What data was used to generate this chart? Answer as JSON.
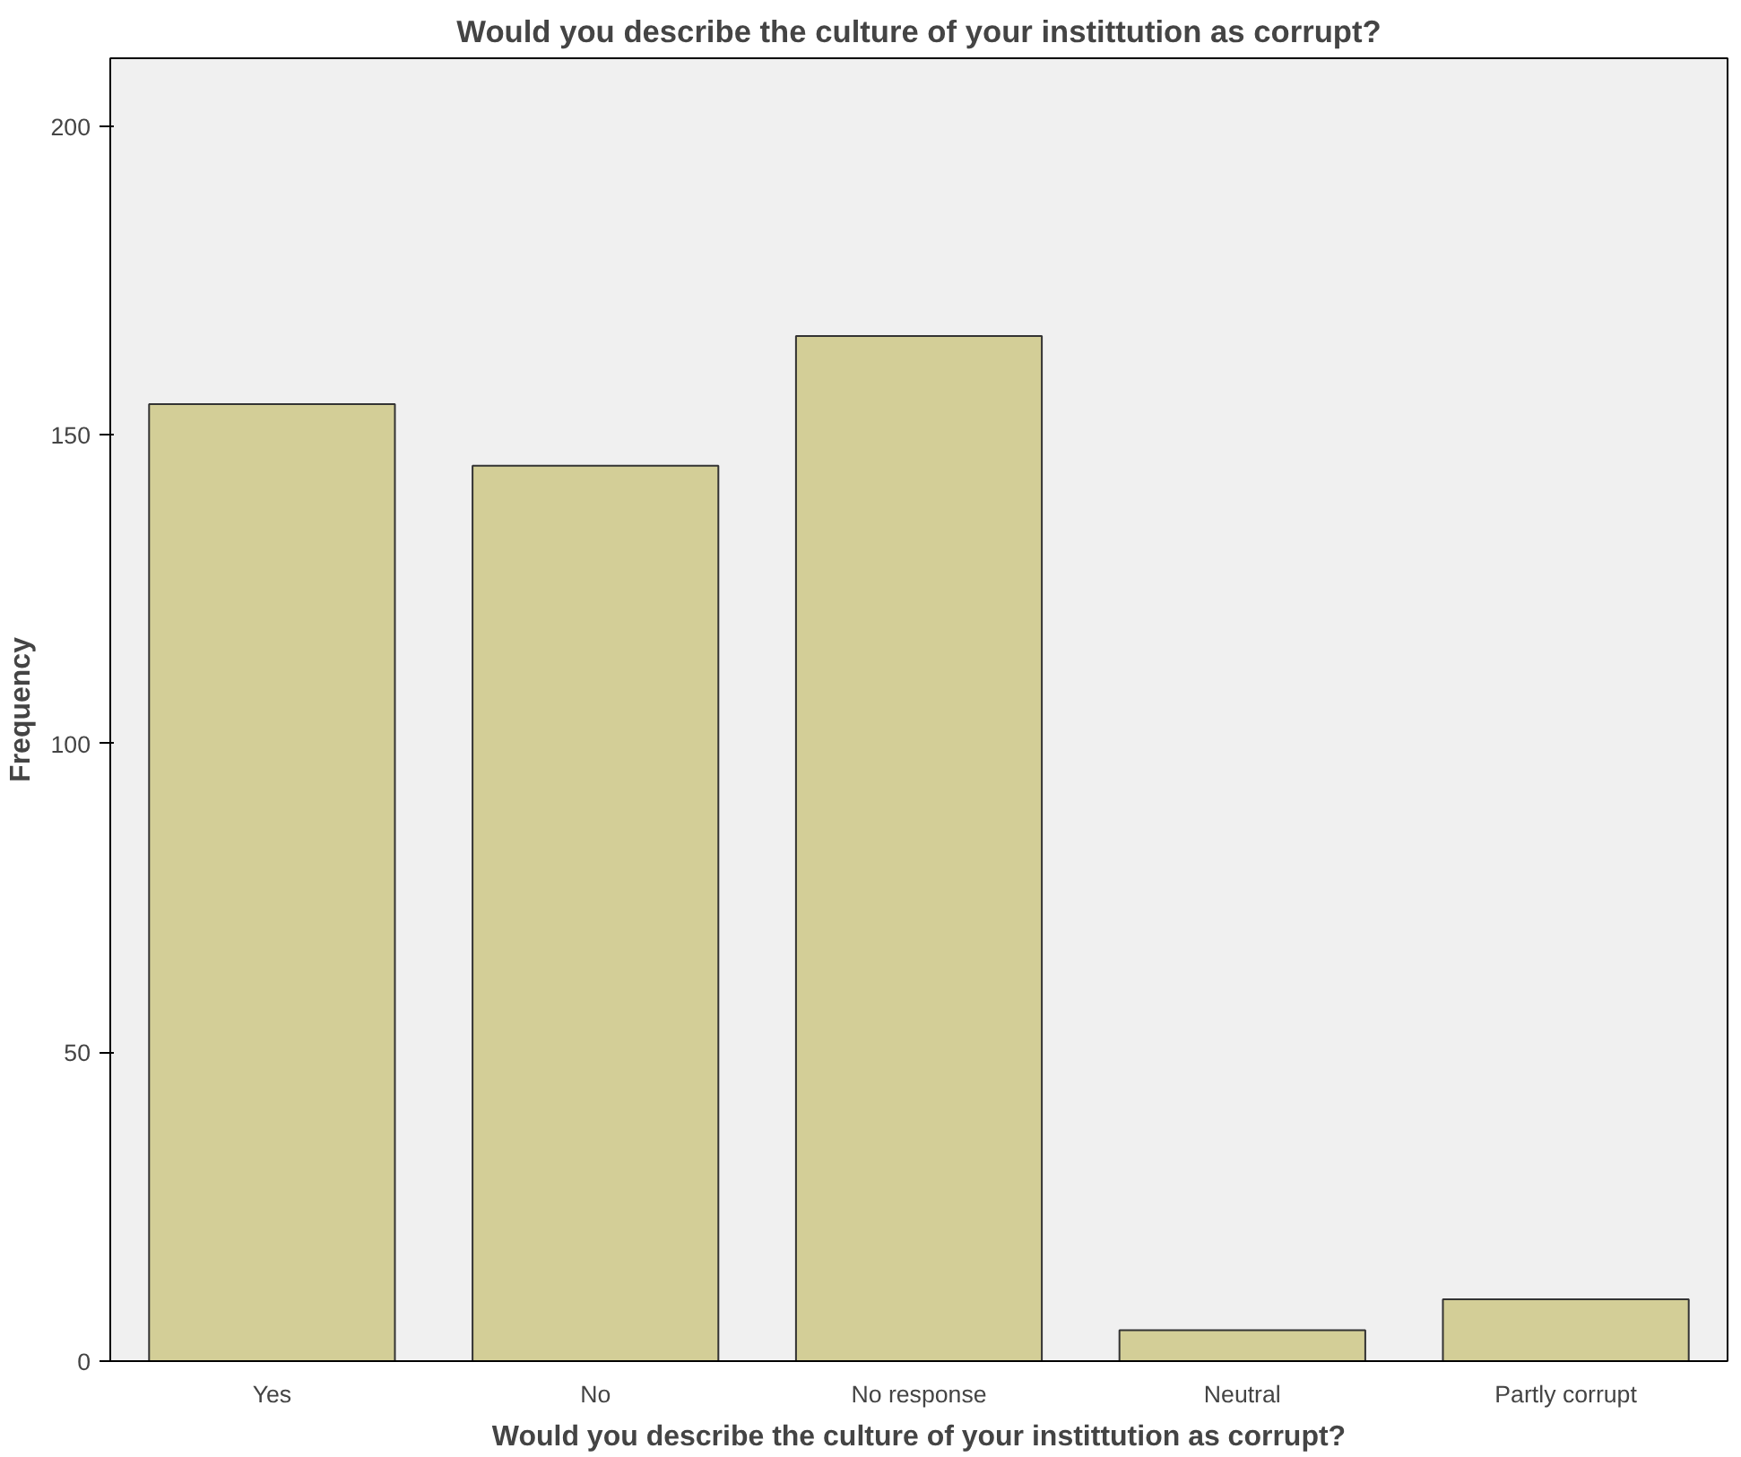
{
  "chart_data": {
    "type": "bar",
    "title": "Would you describe the culture of your instittution as corrupt?",
    "xlabel": "Would you describe the culture of your instittution as corrupt?",
    "ylabel": "Frequency",
    "categories": [
      "Yes",
      "No",
      "No response",
      "Neutral",
      "Partly corrupt"
    ],
    "values": [
      155,
      145,
      166,
      5,
      10
    ],
    "color": "#d3ce97",
    "ylim": [
      0,
      211
    ],
    "yticks": [
      0,
      50,
      100,
      150,
      200
    ],
    "grid": false
  }
}
